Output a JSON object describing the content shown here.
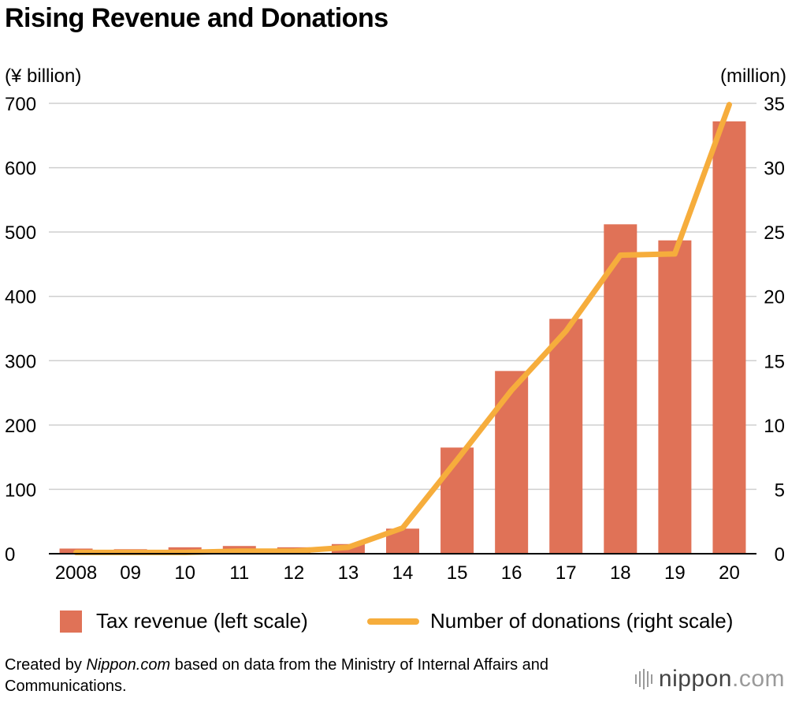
{
  "title": "Rising Revenue and Donations",
  "chart_data": {
    "type": "bar+line",
    "categories": [
      "2008",
      "09",
      "10",
      "11",
      "12",
      "13",
      "14",
      "15",
      "16",
      "17",
      "18",
      "19",
      "20"
    ],
    "series": [
      {
        "name": "Tax revenue (left scale)",
        "type": "bar",
        "axis": "left",
        "color": "#e07257",
        "values": [
          8,
          7,
          10,
          12,
          10,
          15,
          39,
          165,
          284,
          365,
          512,
          487,
          672
        ]
      },
      {
        "name": "Number of donations (right scale)",
        "type": "line",
        "axis": "right",
        "color": "#f6ad3c",
        "values": [
          0.1,
          0.1,
          0.1,
          0.2,
          0.2,
          0.5,
          2.0,
          7.3,
          12.7,
          17.3,
          23.2,
          23.3,
          34.9
        ]
      }
    ],
    "y_left": {
      "unit_label": "(¥ billion)",
      "ylim": [
        0,
        700
      ],
      "ticks": [
        0,
        100,
        200,
        300,
        400,
        500,
        600,
        700
      ]
    },
    "y_right": {
      "unit_label": "(million)",
      "ylim": [
        0,
        35
      ],
      "ticks": [
        0,
        5,
        10,
        15,
        20,
        25,
        30,
        35
      ]
    },
    "grid": true,
    "legend_position": "bottom"
  },
  "legend": {
    "bar_label": "Tax revenue (left scale)",
    "line_label": "Number of donations (right scale)"
  },
  "source": {
    "prefix": "Created by ",
    "publisher": "Nippon.com",
    "suffix": " based on data from the Ministry of Internal Affairs and Communications."
  },
  "brand": {
    "name": "nippon",
    "domain": ".com"
  }
}
